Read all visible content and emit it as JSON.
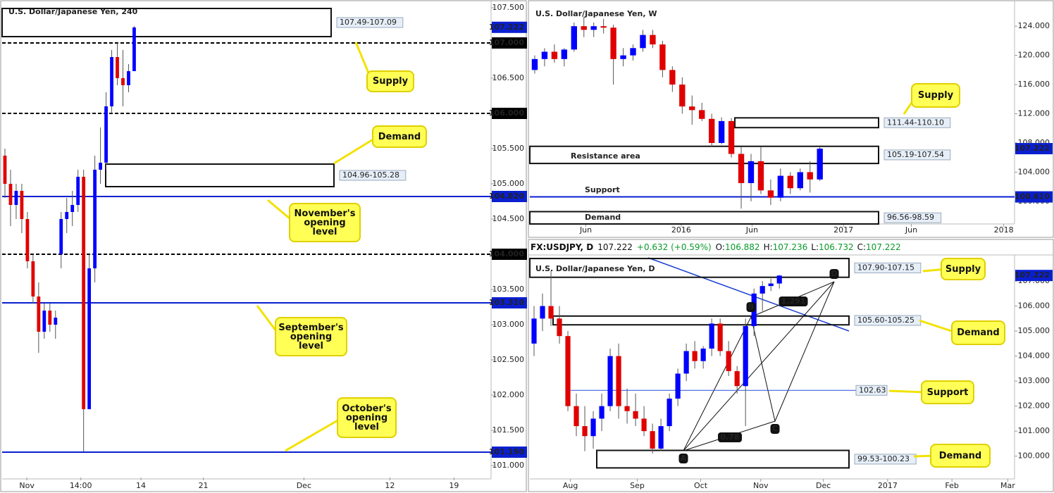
{
  "header": {
    "items": [
      "FX:USDJPY, D",
      "107.222",
      "+0.632 (+0.59%)",
      "O:",
      "106.882",
      "H:",
      "107.236",
      "L:",
      "106.732",
      "C:",
      "107.222"
    ]
  },
  "chart_data": [
    {
      "type": "candlestick",
      "title": "U.S. Dollar/Japanese Yen, 240",
      "up_color": "#0000ff",
      "down_color": "#e00000",
      "xlim": [
        0,
        87
      ],
      "ylim": [
        100.83,
        107.61
      ],
      "xticks": [
        {
          "value": 4.4,
          "label": "Nov"
        },
        {
          "value": 14,
          "label": "14:00"
        },
        {
          "value": 24.7,
          "label": "14"
        },
        {
          "value": 35.8,
          "label": "21"
        },
        {
          "value": 53.7,
          "label": "Dec"
        },
        {
          "value": 69,
          "label": "12"
        },
        {
          "value": 80.4,
          "label": "19"
        }
      ],
      "yticks": [
        {
          "value": 101,
          "label": "101.000"
        },
        {
          "value": 101.5,
          "label": "101.500"
        },
        {
          "value": 102,
          "label": "102.000"
        },
        {
          "value": 102.5,
          "label": "102.500"
        },
        {
          "value": 103,
          "label": "103.000"
        },
        {
          "value": 103.5,
          "label": "103.500"
        },
        {
          "value": 104,
          "label": "104.000"
        },
        {
          "value": 104.5,
          "label": "104.500"
        },
        {
          "value": 105,
          "label": "105.000"
        },
        {
          "value": 105.5,
          "label": "105.500"
        },
        {
          "value": 106,
          "label": "106.000"
        },
        {
          "value": 106.5,
          "label": "106.500"
        },
        {
          "value": 107,
          "label": "107.000"
        },
        {
          "value": 107.5,
          "label": "107.500"
        }
      ],
      "grid": false,
      "values": [
        [
          105.4,
          105.5,
          104.8,
          105.0
        ],
        [
          105.0,
          105.2,
          104.4,
          104.7
        ],
        [
          104.7,
          105.0,
          104.5,
          104.9
        ],
        [
          104.9,
          105.0,
          104.3,
          104.5
        ],
        [
          104.5,
          104.6,
          103.8,
          103.9
        ],
        [
          103.9,
          104.0,
          103.3,
          103.4
        ],
        [
          103.4,
          103.6,
          102.6,
          102.9
        ],
        [
          102.9,
          103.3,
          102.8,
          103.2
        ],
        [
          103.2,
          103.3,
          102.9,
          103.0
        ],
        [
          103.0,
          103.2,
          102.8,
          103.1
        ],
        [
          104.0,
          104.6,
          103.8,
          104.5
        ],
        [
          104.5,
          104.8,
          104.3,
          104.6
        ],
        [
          104.6,
          104.9,
          104.4,
          104.7
        ],
        [
          104.7,
          105.2,
          104.6,
          105.1
        ],
        [
          105.1,
          105.2,
          101.2,
          101.8
        ],
        [
          101.8,
          104.0,
          101.8,
          103.8
        ],
        [
          103.8,
          105.4,
          103.6,
          105.2
        ],
        [
          105.2,
          105.8,
          105.0,
          105.3
        ],
        [
          105.3,
          106.3,
          105.2,
          106.1
        ],
        [
          106.1,
          106.9,
          106.0,
          106.8
        ],
        [
          106.8,
          107.0,
          106.4,
          106.5
        ],
        [
          106.5,
          106.9,
          106.1,
          106.4
        ],
        [
          106.4,
          106.7,
          106.3,
          106.6
        ],
        [
          106.6,
          107.24,
          106.6,
          107.22
        ]
      ],
      "last": 107.222,
      "zones": [
        {
          "label": "107.49-107.09",
          "high": 107.49,
          "low": 107.09
        },
        {
          "label": "104.96-105.28",
          "high": 105.28,
          "low": 104.96
        }
      ],
      "levels": [
        {
          "value": 107,
          "label": "107.000",
          "style": "dashed"
        },
        {
          "value": 106,
          "label": "106.000",
          "style": "dashed"
        },
        {
          "value": 104,
          "label": "104.000",
          "style": "dashed"
        },
        {
          "value": 104.82,
          "label": "104.820",
          "style": "solid"
        },
        {
          "value": 103.31,
          "label": "103.310",
          "style": "solid"
        },
        {
          "value": 101.19,
          "label": "101.190",
          "style": "solid"
        }
      ],
      "annotations": [],
      "callouts": [
        "Supply",
        "Demand",
        "November's opening level",
        "September's opening level",
        "October's opening level"
      ]
    },
    {
      "type": "candlestick",
      "title": "U.S. Dollar/Japanese Yen, W",
      "up_color": "#0000ff",
      "down_color": "#e00000",
      "xlim": [
        0,
        49.3
      ],
      "ylim": [
        96.9,
        127.3
      ],
      "xticks": [
        {
          "value": 5.7,
          "label": "Jun"
        },
        {
          "value": 15.4,
          "label": "2016"
        },
        {
          "value": 22.6,
          "label": "Jun"
        },
        {
          "value": 31.9,
          "label": "2017"
        },
        {
          "value": 38.8,
          "label": "Jun"
        },
        {
          "value": 48.2,
          "label": "2018"
        }
      ],
      "yticks": [
        {
          "value": 100,
          "label": "100.000"
        },
        {
          "value": 104,
          "label": "104.000"
        },
        {
          "value": 108,
          "label": "108.000"
        },
        {
          "value": 112,
          "label": "112.000"
        },
        {
          "value": 116,
          "label": "116.000"
        },
        {
          "value": 120,
          "label": "120.000"
        },
        {
          "value": 124,
          "label": "124.000"
        }
      ],
      "grid": false,
      "values": [
        [
          118,
          120,
          117.5,
          119.5
        ],
        [
          119.5,
          121,
          118.5,
          120.5
        ],
        [
          120.5,
          121.5,
          119,
          119.5
        ],
        [
          119.5,
          121,
          118.5,
          120.8
        ],
        [
          120.8,
          124.5,
          120.5,
          124
        ],
        [
          124,
          125.3,
          122.5,
          123.5
        ],
        [
          123.5,
          124.5,
          122.5,
          124
        ],
        [
          124,
          125,
          123,
          123.8
        ],
        [
          123.8,
          124.2,
          116,
          119.5
        ],
        [
          119.5,
          121,
          118.5,
          120
        ],
        [
          120,
          121.5,
          119.3,
          121
        ],
        [
          121,
          123.5,
          120.5,
          122.8
        ],
        [
          122.8,
          123.5,
          121,
          121.5
        ],
        [
          121.5,
          122,
          117,
          118
        ],
        [
          118,
          118.5,
          115,
          116
        ],
        [
          116,
          117,
          112,
          113
        ],
        [
          113,
          114.5,
          110.5,
          112.5
        ],
        [
          112.5,
          113.5,
          111,
          111.3
        ],
        [
          111.3,
          112,
          107.5,
          108
        ],
        [
          108,
          111.5,
          107.8,
          111
        ],
        [
          111,
          111.4,
          106,
          106.5
        ],
        [
          106.5,
          107.5,
          99,
          102.5
        ],
        [
          102.5,
          106.5,
          100,
          105.5
        ],
        [
          105.5,
          107.5,
          101,
          101.5
        ],
        [
          101.5,
          103,
          99.5,
          100.5
        ],
        [
          100.5,
          104.5,
          100,
          103.5
        ],
        [
          103.5,
          104,
          101,
          101.8
        ],
        [
          101.8,
          104.5,
          101.5,
          104
        ],
        [
          104,
          105.5,
          101.2,
          103
        ],
        [
          103,
          107.5,
          102.8,
          107.22
        ]
      ],
      "last": 107.222,
      "zones": [
        {
          "label": "111.44-110.10",
          "high": 111.44,
          "low": 110.1
        },
        {
          "label": "105.19-107.54",
          "high": 107.54,
          "low": 105.19
        },
        {
          "label": "96.56-98.59",
          "high": 98.59,
          "low": 96.56
        }
      ],
      "levels": [
        {
          "value": 100.61,
          "label": "100.610",
          "style": "solid"
        }
      ],
      "annotations": [
        "Resistance area",
        "Support",
        "Demand"
      ],
      "callouts": [
        "Supply"
      ]
    },
    {
      "type": "candlestick",
      "title": "U.S. Dollar/Japanese Yen, D",
      "up_color": "#0000ff",
      "down_color": "#e00000",
      "xlim": [
        0,
        57.3
      ],
      "ylim": [
        99.09,
        107.93
      ],
      "xticks": [
        {
          "value": 4.8,
          "label": "Aug"
        },
        {
          "value": 12.7,
          "label": "Sep"
        },
        {
          "value": 20.2,
          "label": "Oct"
        },
        {
          "value": 27.3,
          "label": "Nov"
        },
        {
          "value": 34.7,
          "label": "Dec"
        },
        {
          "value": 42.3,
          "label": "2017"
        },
        {
          "value": 49.9,
          "label": "Feb"
        },
        {
          "value": 56.5,
          "label": "Mar"
        }
      ],
      "yticks": [
        {
          "value": 100,
          "label": "100.000"
        },
        {
          "value": 101,
          "label": "101.000"
        },
        {
          "value": 102,
          "label": "102.000"
        },
        {
          "value": 103,
          "label": "103.000"
        },
        {
          "value": 104,
          "label": "104.000"
        },
        {
          "value": 105,
          "label": "105.000"
        },
        {
          "value": 106,
          "label": "106.000"
        },
        {
          "value": 107,
          "label": "107.000"
        }
      ],
      "grid": false,
      "values": [
        [
          104.5,
          106,
          104,
          105.5
        ],
        [
          105.5,
          106.5,
          105,
          106
        ],
        [
          106,
          107.4,
          105.2,
          105.5
        ],
        [
          105.5,
          106,
          104.5,
          104.8
        ],
        [
          104.8,
          105,
          101.8,
          102
        ],
        [
          102,
          102.5,
          100.8,
          101.2
        ],
        [
          101.2,
          102,
          100.2,
          100.8
        ],
        [
          100.8,
          101.8,
          100.3,
          101.5
        ],
        [
          101.5,
          102.5,
          101,
          102
        ],
        [
          102,
          104.3,
          101.8,
          104
        ],
        [
          104,
          104.5,
          101.5,
          102
        ],
        [
          102,
          102.7,
          101.3,
          101.8
        ],
        [
          101.8,
          102.5,
          101.2,
          101.5
        ],
        [
          101.5,
          102,
          100.8,
          101
        ],
        [
          101,
          101.3,
          100.1,
          100.3
        ],
        [
          100.3,
          101.5,
          100.2,
          101.2
        ],
        [
          101.2,
          102.5,
          101,
          102.3
        ],
        [
          102.3,
          103.5,
          102,
          103.3
        ],
        [
          103.3,
          104.5,
          103,
          104.2
        ],
        [
          104.2,
          104.6,
          103.5,
          103.8
        ],
        [
          103.8,
          104.4,
          103.5,
          104.3
        ],
        [
          104.3,
          105.5,
          104,
          105.3
        ],
        [
          105.3,
          105.5,
          104,
          104.2
        ],
        [
          104.2,
          104.6,
          103.2,
          103.4
        ],
        [
          103.4,
          103.6,
          102.5,
          102.8
        ],
        [
          102.8,
          105.5,
          101.2,
          105.2
        ],
        [
          105.2,
          106.7,
          104.8,
          106.5
        ],
        [
          106.5,
          107,
          105.8,
          106.8
        ],
        [
          106.8,
          107.1,
          106.6,
          106.9
        ],
        [
          106.9,
          107.24,
          106.7,
          107.22
        ]
      ],
      "last": 107.222,
      "zones": [
        {
          "label": "107.90-107.15",
          "high": 107.9,
          "low": 107.15
        },
        {
          "label": "105.60-105.25",
          "high": 105.6,
          "low": 105.25
        },
        {
          "label": "99.53-100.23",
          "high": 100.23,
          "low": 99.53
        }
      ],
      "levels": [
        {
          "value": 102.63,
          "style": "thin"
        }
      ],
      "annotations": [],
      "pattern_labels": [
        "A",
        "B",
        "C",
        "D",
        "0.78",
        "1.291"
      ],
      "callouts": [
        "Supply",
        "Demand",
        "Support",
        "Demand"
      ]
    }
  ]
}
